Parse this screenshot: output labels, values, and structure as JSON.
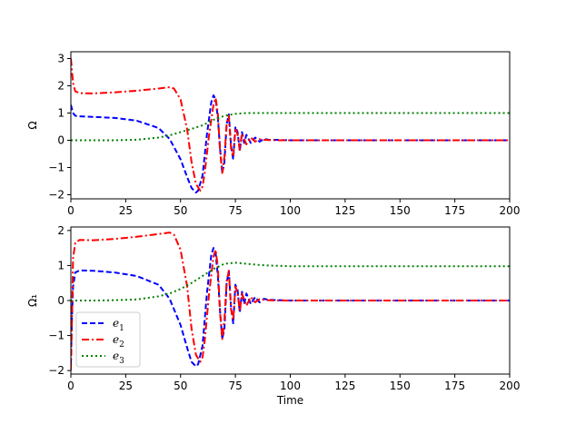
{
  "chart_data": [
    {
      "type": "line",
      "title": "",
      "xlabel": "",
      "ylabel": "Ω",
      "xlim": [
        0,
        200
      ],
      "ylim": [
        -2.15,
        3.25
      ],
      "xticks": [
        "0",
        "25",
        "50",
        "75",
        "100",
        "125",
        "150",
        "175",
        "200"
      ],
      "yticks": [
        "−2",
        "−1",
        "0",
        "1",
        "2",
        "3"
      ],
      "grid": false,
      "legend": null,
      "series": [
        {
          "color": "#0000ff",
          "style": "dashed",
          "x": [
            0,
            1,
            2,
            4,
            10,
            20,
            30,
            40,
            45,
            50,
            53,
            55,
            57,
            58,
            60,
            62,
            64,
            65,
            66,
            67,
            68,
            69,
            70,
            71,
            72,
            73,
            74,
            75,
            76,
            77,
            78,
            79,
            80,
            82,
            84,
            86,
            88,
            90,
            95,
            100,
            200
          ],
          "y": [
            1.3,
            1.0,
            0.9,
            0.88,
            0.86,
            0.82,
            0.72,
            0.45,
            0.05,
            -0.7,
            -1.35,
            -1.75,
            -1.92,
            -1.85,
            -1.3,
            0.2,
            1.4,
            1.65,
            1.5,
            0.8,
            -0.3,
            -1.2,
            -0.8,
            0.6,
            0.95,
            -0.2,
            -0.7,
            0.5,
            0.3,
            -0.4,
            0.3,
            -0.1,
            0.2,
            -0.1,
            0.1,
            -0.05,
            0.05,
            0.02,
            0.01,
            0.0,
            0.0
          ]
        },
        {
          "color": "#ff0000",
          "style": "dashdot",
          "x": [
            0,
            1,
            2,
            4,
            10,
            20,
            30,
            40,
            45,
            47,
            50,
            53,
            55,
            57,
            59,
            60,
            61,
            63,
            65,
            66,
            67,
            68,
            69,
            70,
            71,
            72,
            73,
            74,
            75,
            76,
            77,
            78,
            80,
            82,
            84,
            86,
            88,
            90,
            95,
            100,
            200
          ],
          "y": [
            3.0,
            2.1,
            1.8,
            1.73,
            1.72,
            1.76,
            1.82,
            1.9,
            1.95,
            1.9,
            1.5,
            0.4,
            -0.8,
            -1.6,
            -1.85,
            -1.7,
            -1.2,
            0.2,
            1.3,
            1.55,
            1.0,
            -0.4,
            -1.2,
            -0.6,
            0.6,
            0.9,
            -0.3,
            -0.6,
            0.45,
            0.2,
            -0.35,
            0.25,
            -0.15,
            0.1,
            -0.05,
            0.04,
            0.02,
            0.01,
            0.0,
            0.0,
            0.0
          ]
        },
        {
          "color": "#008000",
          "style": "dotted",
          "x": [
            0,
            10,
            20,
            30,
            40,
            45,
            50,
            55,
            60,
            65,
            70,
            75,
            80,
            85,
            90,
            100,
            120,
            150,
            200
          ],
          "y": [
            0.0,
            0.0,
            0.0,
            0.02,
            0.1,
            0.18,
            0.3,
            0.42,
            0.55,
            0.75,
            0.9,
            0.97,
            1.0,
            1.0,
            1.0,
            1.0,
            1.0,
            1.0,
            1.0
          ]
        }
      ]
    },
    {
      "type": "line",
      "title": "",
      "xlabel": "Time",
      "ylabel": "Ω₁",
      "xlim": [
        0,
        200
      ],
      "ylim": [
        -2.1,
        2.1
      ],
      "xticks": [
        "0",
        "25",
        "50",
        "75",
        "100",
        "125",
        "150",
        "175",
        "200"
      ],
      "yticks": [
        "−2",
        "−1",
        "0",
        "1",
        "2"
      ],
      "grid": false,
      "legend": "lower-left",
      "series": [
        {
          "name": "e",
          "name_sub": "1",
          "color": "#0000ff",
          "style": "dashed",
          "x": [
            0,
            0.5,
            1,
            2,
            4,
            10,
            20,
            30,
            40,
            45,
            50,
            53,
            55,
            57,
            58,
            60,
            62,
            64,
            65,
            66,
            67,
            68,
            69,
            70,
            71,
            72,
            73,
            74,
            75,
            76,
            77,
            78,
            79,
            80,
            82,
            84,
            86,
            88,
            90,
            95,
            100,
            200
          ],
          "y": [
            -1.8,
            -0.5,
            0.4,
            0.8,
            0.86,
            0.85,
            0.8,
            0.7,
            0.45,
            0.05,
            -0.7,
            -1.35,
            -1.75,
            -1.88,
            -1.82,
            -1.3,
            0.2,
            1.3,
            1.5,
            1.35,
            0.7,
            -0.3,
            -1.1,
            -0.8,
            0.5,
            0.85,
            -0.2,
            -0.65,
            0.45,
            0.3,
            -0.35,
            0.25,
            -0.1,
            0.2,
            -0.1,
            0.1,
            -0.05,
            0.05,
            0.02,
            0.01,
            0.0,
            0.0
          ]
        },
        {
          "name": "e",
          "name_sub": "2",
          "color": "#ff0000",
          "style": "dashdot",
          "x": [
            0,
            0.5,
            1,
            2,
            4,
            10,
            20,
            30,
            40,
            45,
            47,
            50,
            53,
            55,
            57,
            59,
            60,
            61,
            63,
            65,
            66,
            67,
            68,
            69,
            70,
            71,
            72,
            73,
            74,
            75,
            76,
            77,
            78,
            80,
            82,
            84,
            86,
            88,
            90,
            95,
            100,
            200
          ],
          "y": [
            -2.0,
            -0.5,
            1.2,
            1.65,
            1.73,
            1.72,
            1.76,
            1.82,
            1.9,
            1.94,
            1.88,
            1.45,
            0.4,
            -0.8,
            -1.55,
            -1.75,
            -1.62,
            -1.15,
            0.2,
            1.25,
            1.45,
            0.95,
            -0.35,
            -1.1,
            -0.55,
            0.55,
            0.85,
            -0.25,
            -0.55,
            0.4,
            0.2,
            -0.3,
            0.2,
            -0.15,
            0.1,
            -0.05,
            0.04,
            0.02,
            0.01,
            0.0,
            0.0,
            0.0
          ]
        },
        {
          "name": "e",
          "name_sub": "3",
          "color": "#008000",
          "style": "dotted",
          "x": [
            0,
            10,
            20,
            30,
            40,
            45,
            50,
            55,
            60,
            65,
            70,
            75,
            80,
            85,
            90,
            100,
            120,
            150,
            200
          ],
          "y": [
            0.0,
            0.0,
            0.01,
            0.03,
            0.12,
            0.2,
            0.33,
            0.5,
            0.7,
            0.9,
            1.05,
            1.08,
            1.05,
            1.02,
            1.0,
            0.98,
            0.98,
            0.98,
            0.98
          ]
        }
      ]
    }
  ]
}
